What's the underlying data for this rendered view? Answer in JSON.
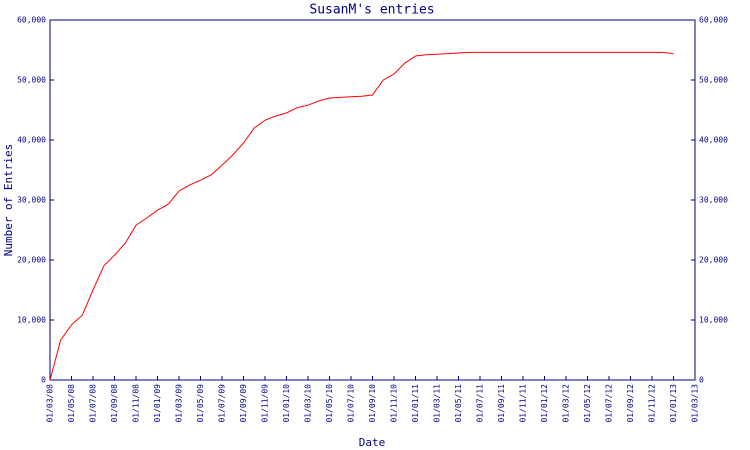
{
  "chart_data": {
    "type": "line",
    "title": "SusanM's entries",
    "x_label": "Date",
    "y_label": "Number of Entries",
    "x": [
      "01/03/08",
      "01/04/08",
      "01/05/08",
      "01/06/08",
      "01/07/08",
      "01/08/08",
      "01/09/08",
      "01/10/08",
      "01/11/08",
      "01/12/08",
      "01/01/09",
      "01/02/09",
      "01/03/09",
      "01/04/09",
      "01/05/09",
      "01/06/09",
      "01/07/09",
      "01/08/09",
      "01/09/09",
      "01/10/09",
      "01/11/09",
      "01/12/09",
      "01/01/10",
      "01/02/10",
      "01/03/10",
      "01/04/10",
      "01/05/10",
      "01/06/10",
      "01/07/10",
      "01/08/10",
      "01/09/10",
      "01/10/10",
      "01/11/10",
      "01/12/10",
      "01/01/11",
      "01/02/11",
      "01/03/11",
      "01/04/11",
      "01/05/11",
      "01/06/11",
      "01/07/11",
      "01/08/11",
      "01/09/11",
      "01/10/11",
      "01/11/11",
      "01/12/11",
      "01/01/12",
      "01/02/12",
      "01/03/12",
      "01/04/12",
      "01/05/12",
      "01/06/12",
      "01/07/12",
      "01/08/12",
      "01/09/12",
      "01/10/12",
      "01/11/12",
      "01/12/12",
      "01/01/13"
    ],
    "series": [
      {
        "name": "entries",
        "color": "#ff0000",
        "values": [
          0,
          6700,
          9200,
          10800,
          15000,
          19000,
          20800,
          22800,
          25800,
          27000,
          28300,
          29300,
          31500,
          32500,
          33300,
          34200,
          35800,
          37500,
          39500,
          42000,
          43300,
          44000,
          44500,
          45400,
          45800,
          46500,
          47000,
          47100,
          47200,
          47300,
          47500,
          50000,
          51000,
          52800,
          54000,
          54200,
          54300,
          54400,
          54500,
          54600,
          54600,
          54600,
          54600,
          54600,
          54600,
          54600,
          54600,
          54600,
          54600,
          54600,
          54600,
          54600,
          54600,
          54600,
          54600,
          54600,
          54600,
          54600,
          54400
        ]
      }
    ],
    "xlim": [
      "01/03/08",
      "01/03/13"
    ],
    "xticks": [
      "01/03/08",
      "01/05/08",
      "01/07/08",
      "01/09/08",
      "01/11/08",
      "01/01/09",
      "01/03/09",
      "01/05/09",
      "01/07/09",
      "01/09/09",
      "01/11/09",
      "01/01/10",
      "01/03/10",
      "01/05/10",
      "01/07/10",
      "01/09/10",
      "01/11/10",
      "01/01/11",
      "01/03/11",
      "01/05/11",
      "01/07/11",
      "01/09/11",
      "01/11/11",
      "01/01/12",
      "01/03/12",
      "01/05/12",
      "01/07/12",
      "01/09/12",
      "01/11/12",
      "01/01/13",
      "01/03/13"
    ],
    "ylim": [
      0,
      60000
    ],
    "yticks": [
      0,
      {
        "value": 10000,
        "label": "10,000"
      },
      {
        "value": 20000,
        "label": "20,000"
      },
      {
        "value": 30000,
        "label": "30,000"
      },
      {
        "value": 40000,
        "label": "40,000"
      },
      {
        "value": 50000,
        "label": "50,000"
      },
      {
        "value": 60000,
        "label": "60,000"
      }
    ],
    "y2lim": [
      0,
      60000
    ],
    "y2ticks": [
      0,
      {
        "value": 10000,
        "label": "10,000"
      },
      {
        "value": 20000,
        "label": "20,000"
      },
      {
        "value": 30000,
        "label": "30,000"
      },
      {
        "value": 40000,
        "label": "40,000"
      },
      {
        "value": 50000,
        "label": "50,000"
      },
      {
        "value": 60000,
        "label": "60,000"
      }
    ]
  }
}
